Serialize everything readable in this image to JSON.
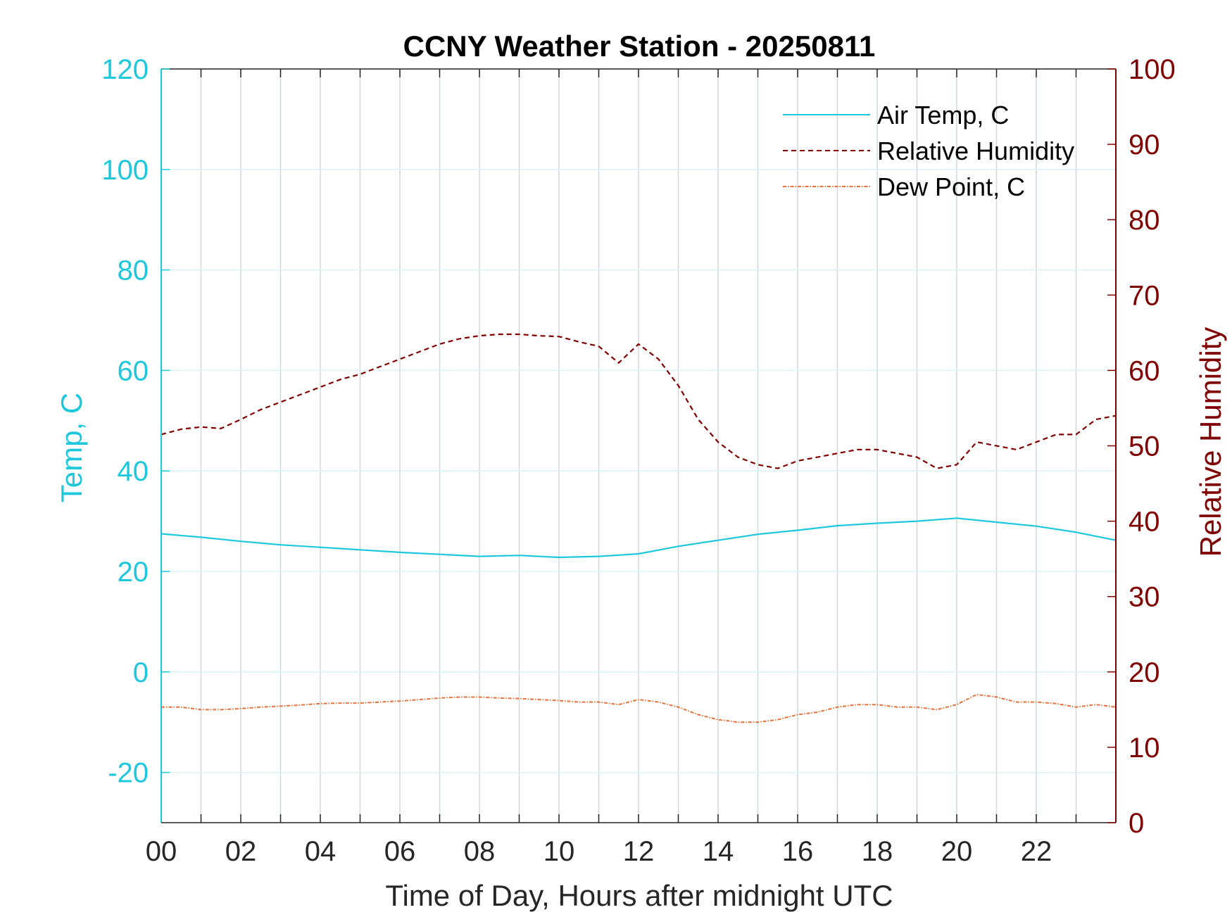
{
  "chart_data": {
    "type": "line",
    "title": "CCNY Weather Station - 20250811",
    "xlabel": "Time of Day, Hours after midnight UTC",
    "ylabel_left": "Temp, C",
    "ylabel_right": "Relative Humidity",
    "xlim": [
      0,
      24
    ],
    "ylim_left": [
      -30,
      120
    ],
    "ylim_right": [
      0,
      100
    ],
    "x_ticks": [
      0,
      2,
      4,
      6,
      8,
      10,
      12,
      14,
      16,
      18,
      20,
      22
    ],
    "x_tick_labels": [
      "00",
      "02",
      "04",
      "06",
      "08",
      "10",
      "12",
      "14",
      "16",
      "18",
      "20",
      "22"
    ],
    "y_left_ticks": [
      -20,
      0,
      20,
      40,
      60,
      80,
      100,
      120
    ],
    "y_left_tick_labels": [
      "-20",
      "0",
      "20",
      "40",
      "60",
      "80",
      "100",
      "120"
    ],
    "y_right_ticks": [
      0,
      10,
      20,
      30,
      40,
      50,
      60,
      70,
      80,
      90,
      100
    ],
    "y_right_tick_labels": [
      "0",
      "10",
      "20",
      "30",
      "40",
      "50",
      "60",
      "70",
      "80",
      "90",
      "100"
    ],
    "grid": true,
    "legend_position": "top-right",
    "colors": {
      "air_temp": "#1ec8dc",
      "relative_humidity": "#800000",
      "dew_point": "#e8703a",
      "left_axis": "#1ec8dc",
      "right_axis": "#800000",
      "grid": "#cfd8dc"
    },
    "series": [
      {
        "name": "Air Temp, C",
        "axis": "left",
        "style": "solid",
        "x": [
          0,
          1,
          2,
          3,
          4,
          5,
          6,
          7,
          8,
          9,
          10,
          11,
          12,
          13,
          14,
          15,
          16,
          17,
          18,
          19,
          20,
          21,
          22,
          23,
          24
        ],
        "values": [
          27.5,
          26.8,
          26.0,
          25.3,
          24.8,
          24.3,
          23.8,
          23.4,
          23.0,
          23.2,
          22.8,
          23.0,
          23.5,
          25.0,
          26.2,
          27.4,
          28.2,
          29.1,
          29.6,
          30.0,
          30.6,
          29.8,
          29.0,
          27.8,
          26.2
        ]
      },
      {
        "name": "Relative Humidity",
        "axis": "right",
        "style": "dashed",
        "x": [
          0,
          0.5,
          1,
          1.5,
          2,
          2.5,
          3,
          3.5,
          4,
          4.5,
          5,
          5.5,
          6,
          6.5,
          7,
          7.5,
          8,
          8.5,
          9,
          9.5,
          10,
          10.5,
          11,
          11.5,
          12,
          12.5,
          13,
          13.5,
          14,
          14.5,
          15,
          15.5,
          16,
          16.5,
          17,
          17.5,
          18,
          18.5,
          19,
          19.5,
          20,
          20.5,
          21,
          21.5,
          22,
          22.5,
          23,
          23.5,
          24
        ],
        "values": [
          51.5,
          52.2,
          52.5,
          52.3,
          53.5,
          54.8,
          55.8,
          56.8,
          57.8,
          58.8,
          59.5,
          60.5,
          61.5,
          62.5,
          63.5,
          64.2,
          64.6,
          64.8,
          64.8,
          64.6,
          64.5,
          63.8,
          63.2,
          61.0,
          63.5,
          61.5,
          58.0,
          53.5,
          50.5,
          48.5,
          47.5,
          47.0,
          48.0,
          48.5,
          49.0,
          49.5,
          49.5,
          49.0,
          48.5,
          47.0,
          47.5,
          50.5,
          50.0,
          49.5,
          50.5,
          51.5,
          51.5,
          53.5,
          54.0
        ]
      },
      {
        "name": "Dew Point, C",
        "axis": "left",
        "style": "dotted",
        "x": [
          0,
          0.5,
          1,
          1.5,
          2,
          2.5,
          3,
          3.5,
          4,
          4.5,
          5,
          5.5,
          6,
          6.5,
          7,
          7.5,
          8,
          8.5,
          9,
          9.5,
          10,
          10.5,
          11,
          11.5,
          12,
          12.5,
          13,
          13.5,
          14,
          14.5,
          15,
          15.5,
          16,
          16.5,
          17,
          17.5,
          18,
          18.5,
          19,
          19.5,
          20,
          20.5,
          21,
          21.5,
          22,
          22.5,
          23,
          23.5,
          24
        ],
        "values": [
          -7.0,
          -7.0,
          -7.5,
          -7.5,
          -7.3,
          -7.0,
          -6.8,
          -6.6,
          -6.3,
          -6.2,
          -6.2,
          -6.0,
          -5.8,
          -5.5,
          -5.2,
          -5.0,
          -5.0,
          -5.2,
          -5.3,
          -5.5,
          -5.7,
          -6.0,
          -6.0,
          -6.5,
          -5.5,
          -6.0,
          -7.0,
          -8.5,
          -9.5,
          -10.0,
          -10.0,
          -9.5,
          -8.5,
          -8.0,
          -7.0,
          -6.5,
          -6.5,
          -7.0,
          -7.0,
          -7.5,
          -6.5,
          -4.5,
          -5.0,
          -6.0,
          -6.0,
          -6.3,
          -7.0,
          -6.5,
          -7.0
        ]
      }
    ]
  }
}
